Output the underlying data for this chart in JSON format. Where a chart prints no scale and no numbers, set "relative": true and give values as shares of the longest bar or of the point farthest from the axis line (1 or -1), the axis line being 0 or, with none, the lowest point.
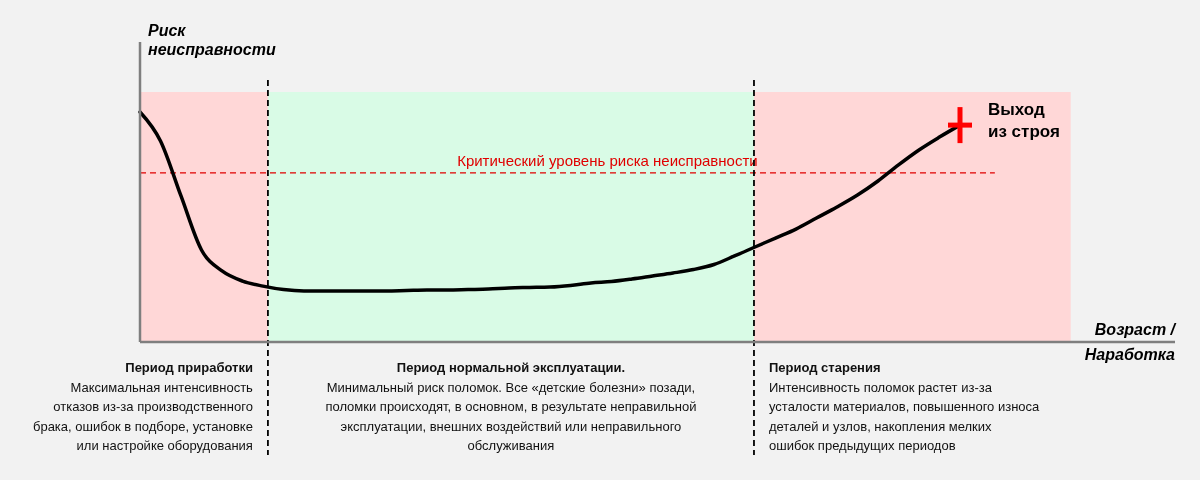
{
  "chart_data": {
    "type": "line",
    "relative": true,
    "ylabel": "Риск\nнеисправности",
    "xlabel": "Возраст /\nНаработка",
    "marker": "none",
    "line_style": "solid",
    "categories": [
      null,
      null,
      null,
      null,
      null,
      null,
      null,
      null,
      null,
      null,
      null,
      null,
      null,
      null,
      null,
      null,
      null,
      null,
      null,
      null,
      null,
      null,
      null,
      null,
      null,
      null,
      null,
      null,
      null,
      null,
      null,
      null,
      null,
      null,
      null,
      null,
      null,
      null,
      null,
      null,
      null,
      null,
      null,
      null,
      null,
      null,
      null,
      null,
      null,
      null,
      null
    ],
    "series": [
      {
        "color": "#000000",
        "values": [
          1,
          0.874,
          0.635,
          0.4,
          0.309,
          0.265,
          0.243,
          0.228,
          0.222,
          0.222,
          0.222,
          0.222,
          0.222,
          0.224,
          0.226,
          0.226,
          0.228,
          0.23,
          0.235,
          0.237,
          0.239,
          0.246,
          0.257,
          0.263,
          0.274,
          0.287,
          0.3,
          0.315,
          0.337,
          0.374,
          0.413,
          0.452,
          0.491,
          0.539,
          0.587,
          0.639,
          0.7,
          0.77,
          0.835,
          0.891,
          0.943,
          null,
          null,
          null,
          null,
          null,
          null,
          null,
          null,
          null,
          null
        ]
      }
    ],
    "ref_lines": [
      {
        "axis": "y",
        "value": 0.735,
        "label": "Критический уровень риска неисправности",
        "color": "#e00000",
        "line_style": "dashed"
      }
    ],
    "annotations": [
      "Период приработки",
      "Максимальная интенсивность\nотказов из-за производственного\nбрака, ошибок в подборе, установке\nили настройке оборудования",
      "Период нормальной эксплуатации.",
      "Минимальный риск поломок. Все «детские болезни» позади,\nполомки происходят, в основном, в результате неправильной\nэксплуатации, внешних воздействий или неправильного\nобслуживания",
      "Период старения",
      "Интенсивность поломок растет из-за\nусталости материалов, повышенного износа\nдеталей и узлов, накопления мелких\nошибок предыдущих периодов",
      "Выход\nиз строя"
    ]
  }
}
